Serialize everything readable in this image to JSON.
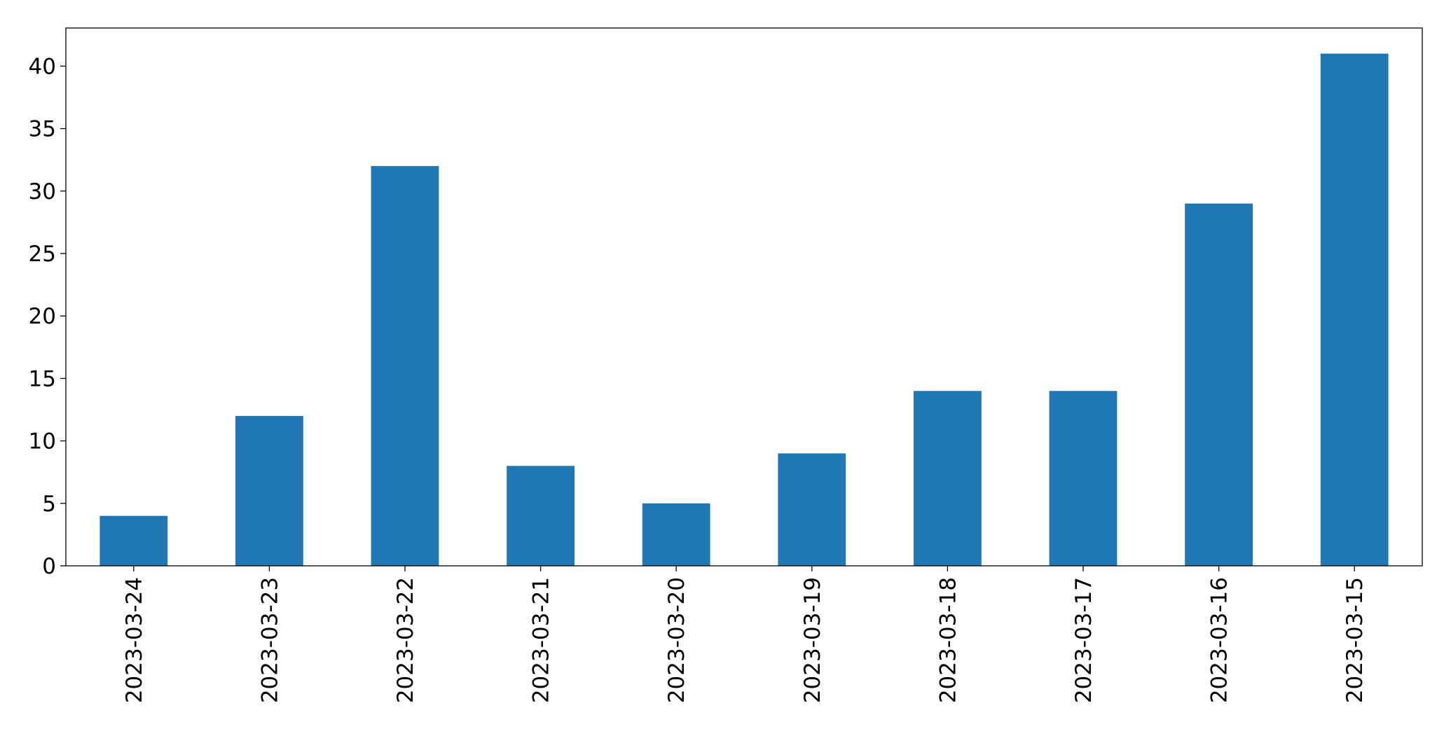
{
  "chart_data": {
    "type": "bar",
    "categories": [
      "2023-03-24",
      "2023-03-23",
      "2023-03-22",
      "2023-03-21",
      "2023-03-20",
      "2023-03-19",
      "2023-03-18",
      "2023-03-17",
      "2023-03-16",
      "2023-03-15"
    ],
    "values": [
      4,
      12,
      32,
      8,
      5,
      9,
      14,
      14,
      29,
      41
    ],
    "color": "#1f77b4",
    "ylim": [
      0,
      43.05
    ],
    "yticks": [
      0,
      5,
      10,
      15,
      20,
      25,
      30,
      35,
      40
    ],
    "grid": false
  }
}
